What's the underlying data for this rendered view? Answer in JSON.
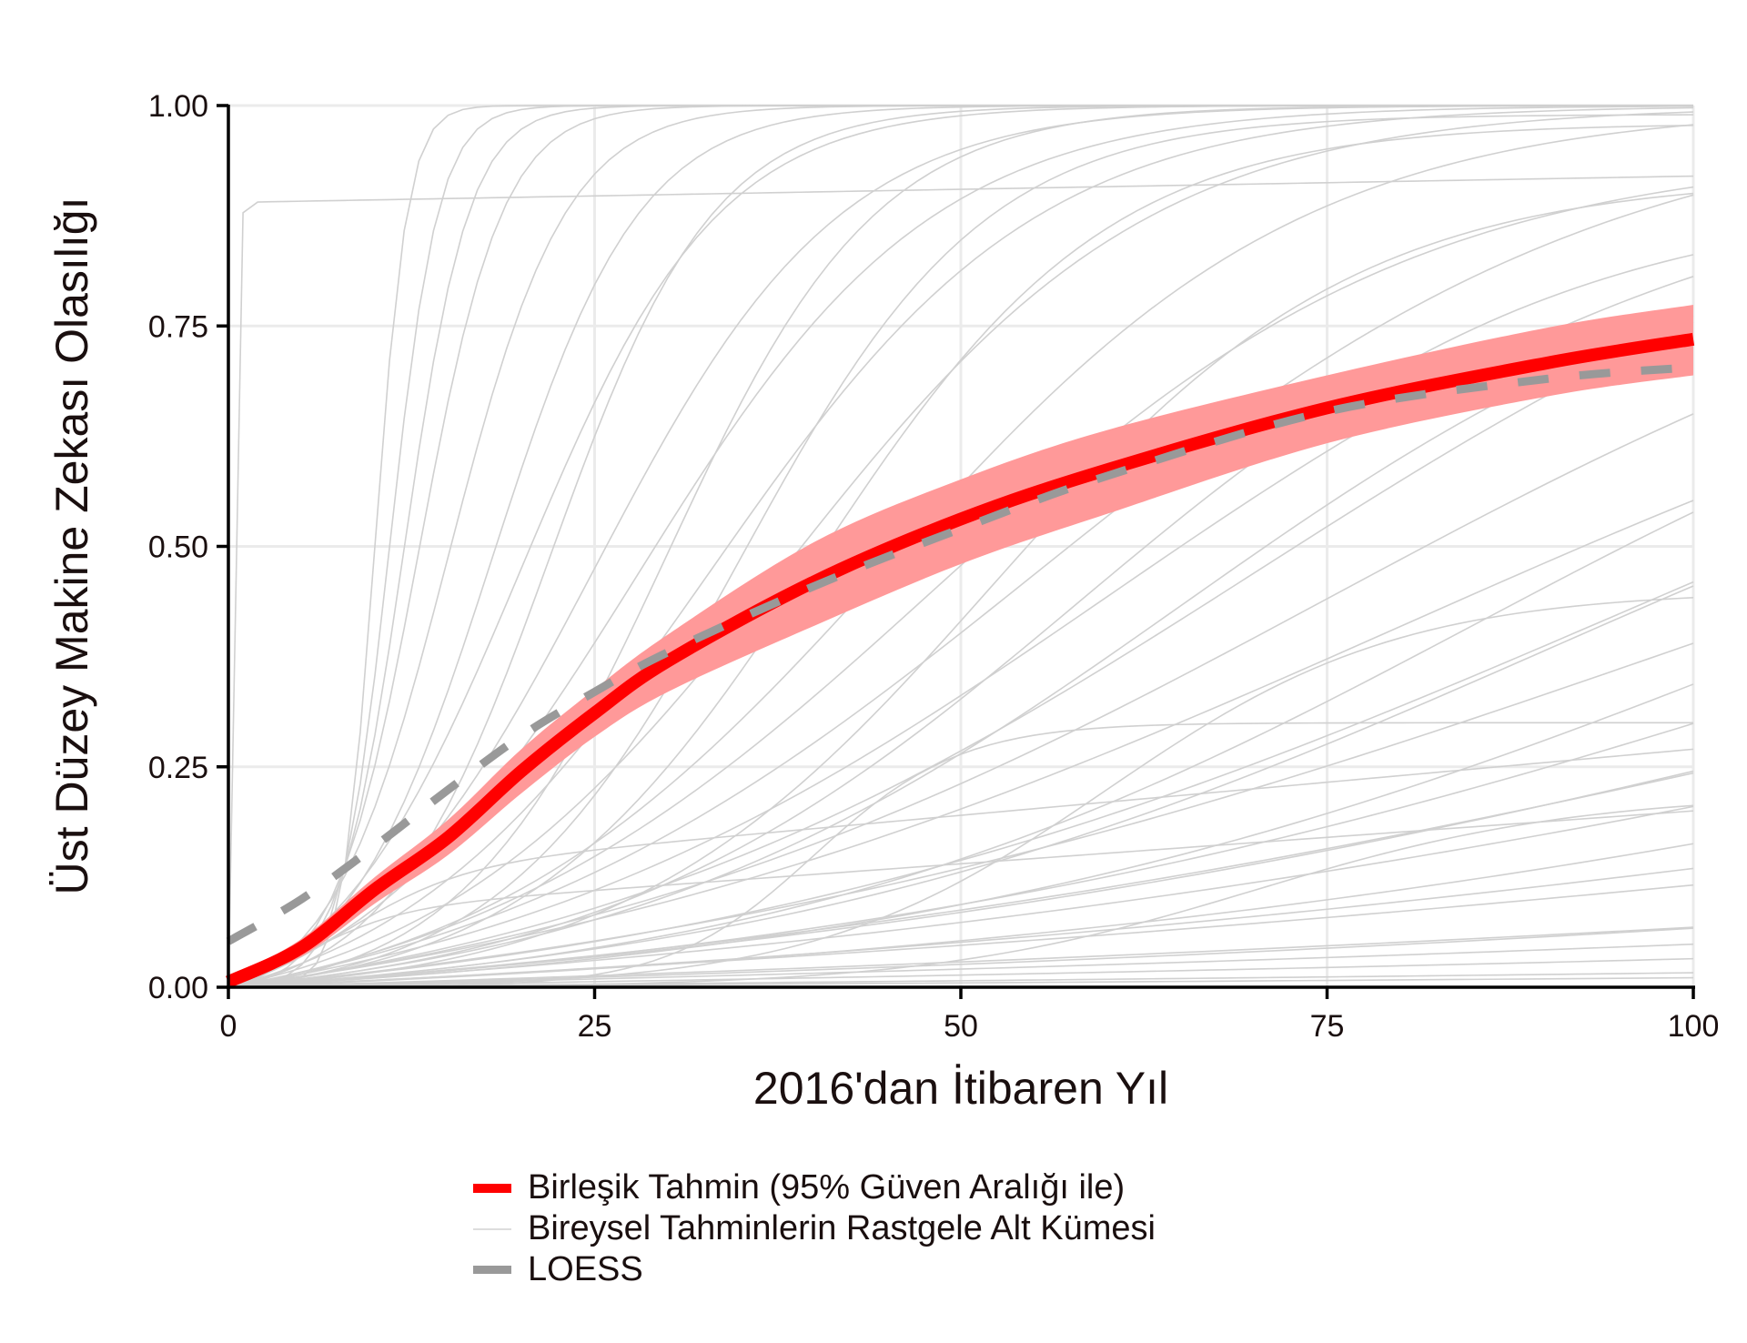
{
  "chart_data": {
    "type": "line",
    "title": "",
    "xlabel": "2016'dan İtibaren Yıl",
    "ylabel": "Üst Düzey Makine Zekası Olasılığı",
    "xlim": [
      0,
      100
    ],
    "ylim": [
      0,
      1
    ],
    "x_ticks": [
      "0",
      "25",
      "50",
      "75",
      "100"
    ],
    "x_tick_values": [
      0,
      25,
      50,
      75,
      100
    ],
    "y_ticks": [
      "0.00",
      "0.25",
      "0.50",
      "0.75",
      "1.00"
    ],
    "y_tick_values": [
      0,
      0.25,
      0.5,
      0.75,
      1.0
    ],
    "grid": true,
    "legend_position": "bottom",
    "series": [
      {
        "name": "Birleşik Tahmin (95% Güven Aralığı ile)",
        "color": "#ff0000",
        "x": [
          0,
          5,
          10,
          15,
          20,
          25,
          30,
          40,
          50,
          60,
          75,
          90,
          100
        ],
        "values": [
          0.006,
          0.045,
          0.111,
          0.17,
          0.245,
          0.311,
          0.37,
          0.46,
          0.531,
          0.587,
          0.657,
          0.708,
          0.735
        ],
        "ci_lower": [
          0.003,
          0.035,
          0.095,
          0.15,
          0.22,
          0.284,
          0.335,
          0.41,
          0.48,
          0.537,
          0.617,
          0.67,
          0.694
        ],
        "ci_upper": [
          0.01,
          0.055,
          0.125,
          0.19,
          0.27,
          0.338,
          0.4,
          0.505,
          0.576,
          0.632,
          0.694,
          0.748,
          0.774
        ],
        "ci_color": "#ff9999"
      },
      {
        "name": "LOESS",
        "color": "#999999",
        "style": "dashed",
        "x": [
          0,
          5,
          10,
          15,
          20,
          25,
          30,
          40,
          50,
          60,
          75,
          90,
          100
        ],
        "values": [
          0.052,
          0.1,
          0.16,
          0.224,
          0.285,
          0.335,
          0.38,
          0.455,
          0.52,
          0.58,
          0.653,
          0.69,
          0.703
        ]
      },
      {
        "name": "Bireysel Tahminlerin Rastgele Alt Kümesi",
        "color": "#d0d0d0",
        "style": "thin",
        "curves_logistic": [
          {
            "mid": 10,
            "k": 0.9,
            "max": 1.0
          },
          {
            "mid": 11,
            "k": 0.6,
            "max": 1.0
          },
          {
            "mid": 12,
            "k": 0.45,
            "max": 1.0
          },
          {
            "mid": 13,
            "k": 0.35,
            "max": 1.0
          },
          {
            "mid": 0,
            "k": 5,
            "max": 0.89,
            "drift": 0.0003
          },
          {
            "mid": 15,
            "k": 0.25,
            "max": 1.0
          },
          {
            "mid": 18,
            "k": 0.2,
            "max": 1.0
          },
          {
            "mid": 20,
            "k": 0.15,
            "max": 1.0
          },
          {
            "mid": 22,
            "k": 0.18,
            "max": 1.0
          },
          {
            "mid": 25,
            "k": 0.12,
            "max": 1.0
          },
          {
            "mid": 28,
            "k": 0.1,
            "max": 1.0
          },
          {
            "mid": 30,
            "k": 0.14,
            "max": 1.0
          },
          {
            "mid": 33,
            "k": 0.09,
            "max": 1.0
          },
          {
            "mid": 35,
            "k": 0.12,
            "max": 0.99
          },
          {
            "mid": 38,
            "k": 0.08,
            "max": 1.0
          },
          {
            "mid": 40,
            "k": 0.1,
            "max": 0.98
          },
          {
            "mid": 45,
            "k": 0.07,
            "max": 1.0
          },
          {
            "mid": 48,
            "k": 0.06,
            "max": 0.95
          },
          {
            "mid": 52,
            "k": 0.08,
            "max": 0.92
          },
          {
            "mid": 55,
            "k": 0.05,
            "max": 1.0
          },
          {
            "mid": 58,
            "k": 0.06,
            "max": 0.9
          },
          {
            "mid": 60,
            "k": 0.045,
            "max": 0.95
          },
          {
            "mid": 65,
            "k": 0.05,
            "max": 0.9
          },
          {
            "mid": 70,
            "k": 0.04,
            "max": 1.0
          },
          {
            "mid": 75,
            "k": 0.035,
            "max": 0.95
          },
          {
            "mid": 80,
            "k": 0.03,
            "max": 0.9
          },
          {
            "mid": 85,
            "k": 0.04,
            "max": 0.85
          },
          {
            "mid": 90,
            "k": 0.035,
            "max": 0.8
          },
          {
            "mid": 95,
            "k": 0.03,
            "max": 0.9
          },
          {
            "mid": 100,
            "k": 0.025,
            "max": 0.85
          },
          {
            "mid": 110,
            "k": 0.03,
            "max": 0.85
          },
          {
            "mid": 115,
            "k": 0.025,
            "max": 0.8
          },
          {
            "mid": 120,
            "k": 0.02,
            "max": 0.7
          },
          {
            "mid": 130,
            "k": 0.02,
            "max": 0.8
          },
          {
            "mid": 140,
            "k": 0.018,
            "max": 0.75
          },
          {
            "mid": 150,
            "k": 0.02,
            "max": 0.7
          },
          {
            "mid": 160,
            "k": 0.015,
            "max": 0.6
          },
          {
            "mid": 170,
            "k": 0.012,
            "max": 0.55
          },
          {
            "mid": 200,
            "k": 0.01,
            "max": 0.4
          },
          {
            "mid": 220,
            "k": 0.012,
            "max": 0.5
          },
          {
            "mid": 250,
            "k": 0.009,
            "max": 0.4
          },
          {
            "mid": 300,
            "k": 0.008,
            "max": 0.35
          },
          {
            "mid": 350,
            "k": 0.006,
            "max": 0.2
          },
          {
            "mid": 400,
            "k": 0.005,
            "max": 0.15
          },
          {
            "mid": 40,
            "k": 0.2,
            "max": 0.3
          },
          {
            "mid": 60,
            "k": 0.1,
            "max": 0.45
          },
          {
            "mid": 70,
            "k": 0.09,
            "max": 0.22
          },
          {
            "mid": 8,
            "k": 0.25,
            "max": 0.12,
            "drift": 0.0015
          },
          {
            "mid": 5,
            "k": 0.3,
            "max": 0.08,
            "drift": 0.0012
          }
        ]
      }
    ]
  },
  "axes": {
    "x_title": "2016'dan İtibaren Yıl",
    "y_title": "Üst Düzey Makine Zekası Olasılığı",
    "x_ticks": [
      "0",
      "25",
      "50",
      "75",
      "100"
    ],
    "y_ticks": [
      "0.00",
      "0.25",
      "0.50",
      "0.75",
      "1.00"
    ]
  },
  "legend": {
    "items": [
      {
        "label": "Birleşik Tahmin (95% Güven Aralığı ile)",
        "key": "combined"
      },
      {
        "label": "Bireysel Tahminlerin Rastgele Alt Kümesi",
        "key": "individual"
      },
      {
        "label": "LOESS",
        "key": "loess"
      }
    ]
  },
  "colors": {
    "combined": "#ff0000",
    "ci_band": "#ff9999",
    "loess": "#999999",
    "individual": "#d0d0d0",
    "grid": "#ebebeb",
    "axis": "#000000",
    "text": "#1a0f0f"
  }
}
